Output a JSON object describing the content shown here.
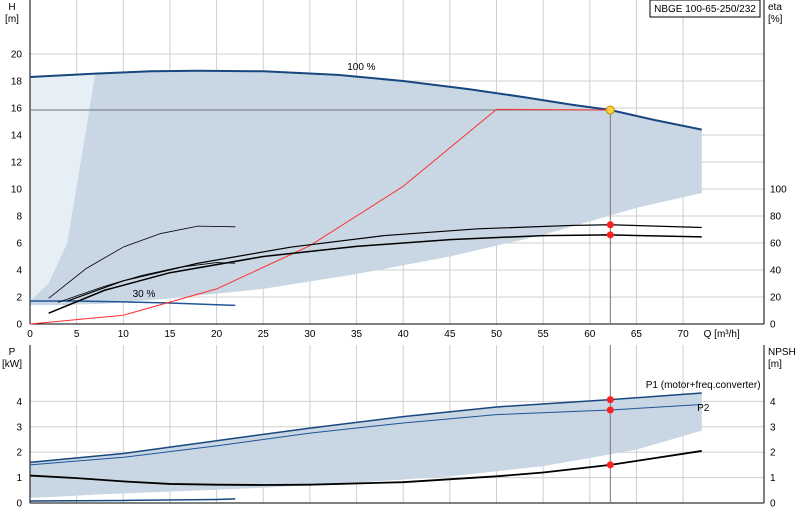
{
  "colors": {
    "band": "#c9d6e3",
    "band_light": "#e6eef6",
    "curve_dark": "#17477f",
    "curve_mid": "#1f5597",
    "black": "#000000",
    "system": "#ff3030",
    "op_point": "#ffd23f",
    "marker": "#ff2020",
    "ref_line": "#777777",
    "grid": "#cfcfcf"
  },
  "chart_data": [
    {
      "type": "line",
      "id": "head",
      "title": "NBGE 100-65-250/232",
      "left_axis": {
        "label": [
          "H",
          "[m]"
        ],
        "ticks": [
          0,
          2,
          4,
          6,
          8,
          10,
          12,
          14,
          16,
          18,
          20
        ],
        "ylim": [
          0,
          22
        ]
      },
      "right_axis": {
        "label": [
          "eta",
          "[%]"
        ],
        "ticks": [
          0,
          20,
          40,
          60,
          80,
          100
        ]
      },
      "x_axis": {
        "label": "Q [m³/h]",
        "ticks": [
          0,
          5,
          10,
          15,
          20,
          25,
          30,
          35,
          40,
          45,
          50,
          55,
          60,
          65,
          70
        ],
        "xlim": [
          0,
          75
        ]
      },
      "annotations": [
        {
          "text": "100 %",
          "x": 34,
          "y": 18.8
        },
        {
          "text": "30 %",
          "x": 11,
          "y": 2.0
        }
      ],
      "series": [
        {
          "role": "curve-100",
          "color": "curve_dark",
          "width": 2,
          "x": [
            0,
            7,
            13,
            18,
            25,
            33,
            40,
            47,
            53,
            58,
            62.2,
            67,
            72
          ],
          "y": [
            18.3,
            18.55,
            18.72,
            18.76,
            18.72,
            18.45,
            18.0,
            17.4,
            16.8,
            16.25,
            15.85,
            15.1,
            14.4
          ]
        },
        {
          "role": "curve-30",
          "color": "curve_mid",
          "width": 1.5,
          "x": [
            0,
            5,
            10,
            15,
            20,
            22
          ],
          "y": [
            1.7,
            1.7,
            1.64,
            1.56,
            1.43,
            1.38
          ]
        },
        {
          "role": "system-curve",
          "color": "system",
          "width": 1,
          "x": [
            0,
            10,
            20,
            30,
            40,
            50,
            62.2
          ],
          "y": [
            0,
            0.65,
            2.6,
            5.8,
            10.2,
            15.9,
            15.85
          ]
        },
        {
          "role": "eta-1",
          "color": "black",
          "width": 1.5,
          "x": [
            2,
            8,
            15,
            25,
            35,
            45,
            55,
            62.2,
            72
          ],
          "y": [
            0.8,
            2.5,
            3.8,
            5.0,
            5.75,
            6.25,
            6.55,
            6.6,
            6.45
          ]
        },
        {
          "role": "eta-2",
          "color": "black",
          "width": 1.2,
          "x": [
            4,
            10,
            18,
            28,
            38,
            48,
            58,
            62.2,
            72
          ],
          "y": [
            1.7,
            3.2,
            4.5,
            5.7,
            6.55,
            7.05,
            7.3,
            7.35,
            7.15
          ]
        },
        {
          "role": "eta-3",
          "color": "black",
          "width": 0.8,
          "x": [
            2,
            6,
            10,
            14,
            18,
            22
          ],
          "y": [
            1.9,
            4.1,
            5.7,
            6.7,
            7.25,
            7.2
          ]
        },
        {
          "role": "eta-4",
          "color": "black",
          "width": 0.8,
          "x": [
            3,
            8,
            12,
            16,
            20,
            22
          ],
          "y": [
            1.6,
            2.8,
            3.6,
            4.2,
            4.55,
            4.5
          ]
        }
      ],
      "region": {
        "top_x": [
          0,
          7,
          13,
          18,
          25,
          33,
          40,
          47,
          53,
          58,
          62.2,
          67,
          72
        ],
        "top_y": [
          18.3,
          18.55,
          18.72,
          18.76,
          18.72,
          18.45,
          18.0,
          17.4,
          16.8,
          16.25,
          15.85,
          15.1,
          14.4
        ],
        "bottom_x": [
          72,
          65,
          55,
          45,
          35,
          25,
          15,
          8,
          3,
          0
        ],
        "bottom_y": [
          9.7,
          8.6,
          6.6,
          5.0,
          3.7,
          2.6,
          1.9,
          1.5,
          1.4,
          1.4
        ],
        "light_x": [
          0,
          7,
          4,
          2,
          0
        ],
        "light_y": [
          18.3,
          18.55,
          6.0,
          3.0,
          1.7
        ]
      },
      "operating_point": {
        "x": 62.2,
        "y": 15.85
      },
      "markers": [
        {
          "x": 62.2,
          "y": 7.35
        },
        {
          "x": 62.2,
          "y": 6.6
        }
      ]
    },
    {
      "type": "line",
      "id": "power",
      "left_axis": {
        "label": [
          "P",
          "[kW]"
        ],
        "ticks": [
          0,
          1,
          2,
          3,
          4
        ],
        "ylim": [
          0,
          5
        ]
      },
      "right_axis": {
        "label": [
          "NPSH",
          "[m]"
        ],
        "ticks": [
          0,
          1,
          2,
          3,
          4
        ]
      },
      "x_axis": {
        "xlim": [
          0,
          75
        ]
      },
      "annotations": [
        {
          "text": "P1 (motor+freq.converter)",
          "x": 66,
          "y": 4.52
        },
        {
          "text": "P2",
          "x": 71.5,
          "y": 3.62
        }
      ],
      "series": [
        {
          "role": "P1",
          "color": "curve_dark",
          "width": 1.5,
          "x": [
            0,
            10,
            20,
            30,
            40,
            50,
            62.2,
            72
          ],
          "y": [
            1.6,
            1.95,
            2.45,
            2.95,
            3.4,
            3.78,
            4.07,
            4.33
          ]
        },
        {
          "role": "P2",
          "color": "curve_mid",
          "width": 1,
          "x": [
            0,
            10,
            20,
            30,
            40,
            50,
            62.2,
            72
          ],
          "y": [
            1.5,
            1.8,
            2.25,
            2.75,
            3.15,
            3.48,
            3.66,
            3.88
          ]
        },
        {
          "role": "NPSH",
          "color": "black",
          "width": 1.8,
          "x": [
            0,
            5,
            10,
            15,
            20,
            25,
            30,
            40,
            50,
            55,
            62.2,
            72
          ],
          "y": [
            1.08,
            0.98,
            0.85,
            0.75,
            0.72,
            0.71,
            0.72,
            0.82,
            1.05,
            1.2,
            1.5,
            2.05
          ]
        },
        {
          "role": "P-30",
          "color": "curve_dark",
          "width": 1.5,
          "x": [
            0,
            10,
            20,
            22
          ],
          "y": [
            0.08,
            0.1,
            0.14,
            0.16
          ]
        }
      ],
      "region": {
        "top_x": [
          0,
          10,
          20,
          30,
          40,
          50,
          62.2,
          72
        ],
        "top_y": [
          1.6,
          1.95,
          2.45,
          2.95,
          3.4,
          3.78,
          4.07,
          4.33
        ],
        "bottom_x": [
          72,
          65,
          55,
          45,
          35,
          25,
          15,
          8,
          3,
          0
        ],
        "bottom_y": [
          2.85,
          2.1,
          1.45,
          1.05,
          0.8,
          0.6,
          0.45,
          0.35,
          0.25,
          0.2
        ]
      },
      "markers": [
        {
          "x": 62.2,
          "y": 4.07
        },
        {
          "x": 62.2,
          "y": 3.66
        },
        {
          "x": 62.2,
          "y": 1.5
        }
      ]
    }
  ]
}
